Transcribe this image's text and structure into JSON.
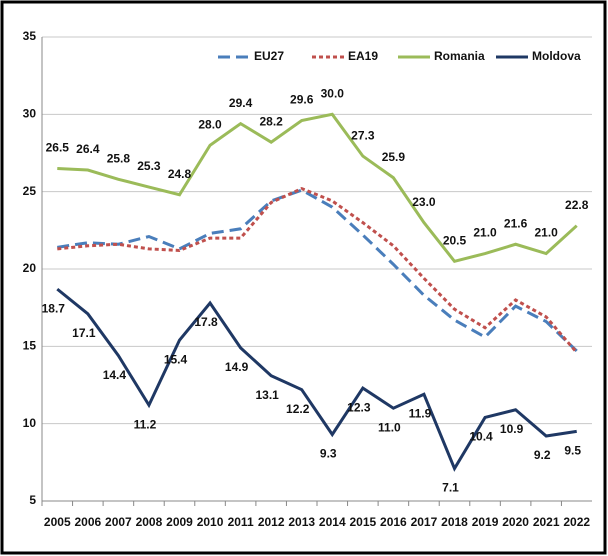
{
  "chart_data": {
    "type": "line",
    "categories": [
      "2005",
      "2006",
      "2007",
      "2008",
      "2009",
      "2010",
      "2011",
      "2012",
      "2013",
      "2014",
      "2015",
      "2016",
      "2017",
      "2018",
      "2019",
      "2020",
      "2021",
      "2022"
    ],
    "ylim": [
      5,
      35
    ],
    "yticks": [
      5,
      10,
      15,
      20,
      25,
      30,
      35
    ],
    "grid": true,
    "legend": "top-right",
    "series": [
      {
        "name": "EU27",
        "color": "#4a7ebb",
        "dash": "dashed",
        "values": [
          21.4,
          21.7,
          21.6,
          22.1,
          21.3,
          22.3,
          22.6,
          24.4,
          25.1,
          24.0,
          22.2,
          20.3,
          18.3,
          16.7,
          15.6,
          17.6,
          16.6,
          14.7
        ]
      },
      {
        "name": "EA19",
        "color": "#c0504d",
        "dash": "dotted",
        "values": [
          21.3,
          21.5,
          21.6,
          21.3,
          21.2,
          22.0,
          22.0,
          24.3,
          25.2,
          24.4,
          23.0,
          21.5,
          19.4,
          17.4,
          16.2,
          18.0,
          16.9,
          14.6
        ]
      },
      {
        "name": "Romania",
        "color": "#9bbb59",
        "dash": "solid",
        "values": [
          26.5,
          26.4,
          25.8,
          25.3,
          24.8,
          28.0,
          29.4,
          28.2,
          29.6,
          30.0,
          27.3,
          25.9,
          23.0,
          20.5,
          21.0,
          21.6,
          21.0,
          22.8
        ],
        "value_labels": [
          "26.5",
          "26.4",
          "25.8",
          "25.3",
          "24.8",
          "28.0",
          "29.4",
          "28.2",
          "29.6",
          "30.0",
          "27.3",
          "25.9",
          "23.0",
          "20.5",
          "21.0",
          "21.6",
          "21.0",
          "22.8"
        ]
      },
      {
        "name": "Moldova",
        "color": "#1f3864",
        "dash": "solid",
        "values": [
          18.7,
          17.1,
          14.4,
          11.2,
          15.4,
          17.8,
          14.9,
          13.1,
          12.2,
          9.3,
          12.3,
          11.0,
          11.9,
          7.1,
          10.4,
          10.9,
          9.2,
          9.5
        ],
        "value_labels": [
          "18.7",
          "17.1",
          "14.4",
          "11.2",
          "15.4",
          "17.8",
          "14.9",
          "13.1",
          "12.2",
          "9.3",
          "12.3",
          "11.0",
          "11.9",
          "7.1",
          "10.4",
          "10.9",
          "9.2",
          "9.5"
        ]
      }
    ]
  }
}
